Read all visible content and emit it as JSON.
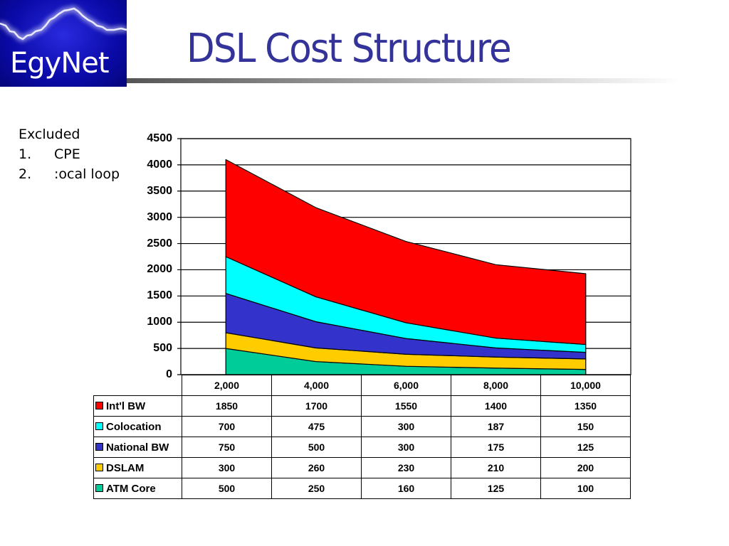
{
  "header": {
    "logo_text": "EgyNet",
    "title": "DSL Cost Structure"
  },
  "notes": {
    "heading": "Excluded",
    "items": [
      {
        "num": "1.",
        "text": "CPE"
      },
      {
        "num": "2.",
        "text": ":ocal loop"
      }
    ]
  },
  "colors": {
    "title": "#333399",
    "intl_bw": "#FF0000",
    "colocation": "#00FFFF",
    "national_bw": "#3333CC",
    "dslam": "#FFCC00",
    "atm_core": "#00CC99"
  },
  "chart_data": {
    "type": "area",
    "stacked": true,
    "title": "DSL Cost Structure",
    "xlabel": "",
    "ylabel": "",
    "categories": [
      "2,000",
      "4,000",
      "6,000",
      "8,000",
      "10,000"
    ],
    "ylim": [
      0,
      4500
    ],
    "yticks": [
      "4500",
      "4000",
      "3500",
      "3000",
      "2500",
      "2000",
      "1500",
      "1000",
      "500",
      "0"
    ],
    "grid": true,
    "legend_position": "data-table",
    "series": [
      {
        "name": "ATM Core",
        "color": "#00CC99",
        "values": [
          500,
          250,
          160,
          125,
          100
        ]
      },
      {
        "name": "DSLAM",
        "color": "#FFCC00",
        "values": [
          300,
          260,
          230,
          210,
          200
        ]
      },
      {
        "name": "National BW",
        "color": "#3333CC",
        "values": [
          750,
          500,
          300,
          175,
          125
        ]
      },
      {
        "name": "Colocation",
        "color": "#00FFFF",
        "values": [
          700,
          475,
          300,
          187,
          150
        ]
      },
      {
        "name": "Int'l BW",
        "color": "#FF0000",
        "values": [
          1850,
          1700,
          1550,
          1400,
          1350
        ]
      }
    ],
    "table_rows": [
      {
        "label": "Int'l BW",
        "color": "#FF0000",
        "values": [
          "1850",
          "1700",
          "1550",
          "1400",
          "1350"
        ]
      },
      {
        "label": "Colocation",
        "color": "#00FFFF",
        "values": [
          "700",
          "475",
          "300",
          "187",
          "150"
        ]
      },
      {
        "label": "National BW",
        "color": "#3333CC",
        "values": [
          "750",
          "500",
          "300",
          "175",
          "125"
        ]
      },
      {
        "label": "DSLAM",
        "color": "#FFCC00",
        "values": [
          "300",
          "260",
          "230",
          "210",
          "200"
        ]
      },
      {
        "label": "ATM Core",
        "color": "#00CC99",
        "values": [
          "500",
          "250",
          "160",
          "125",
          "100"
        ]
      }
    ]
  }
}
